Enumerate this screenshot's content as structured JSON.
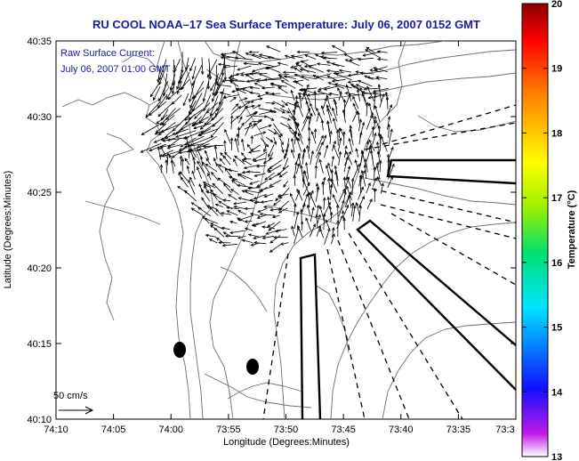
{
  "title": "RU COOL  NOAA–17  Sea Surface Temperature:  July 06, 2007 0152 GMT",
  "annotation": {
    "line1": "Raw Surface Current:",
    "line2": "July 06, 2007 01:00 GMT"
  },
  "axes": {
    "xlabel": "Longitude (Degrees:Minutes)",
    "ylabel": "Latitude (Degrees:Minutes)",
    "x_ticks": [
      "74:10",
      "74:05",
      "74:00",
      "73:55",
      "73:50",
      "73:45",
      "73:40",
      "73:35",
      "73:3"
    ],
    "y_ticks": [
      "40:35",
      "40:30",
      "40:25",
      "40:20",
      "40:15",
      "40:10"
    ]
  },
  "colorbar": {
    "label": "Temperature (°C)",
    "ticks": [
      "20",
      "19",
      "18",
      "17",
      "16",
      "15",
      "14",
      "13"
    ],
    "min": 13,
    "max": 20
  },
  "scale_label": "50 cm/s",
  "colors": {
    "title": "#1a1aa6",
    "coast": "#6e6e6e",
    "vectors": "#000000"
  },
  "icons": [
    "arrow-icon"
  ]
}
